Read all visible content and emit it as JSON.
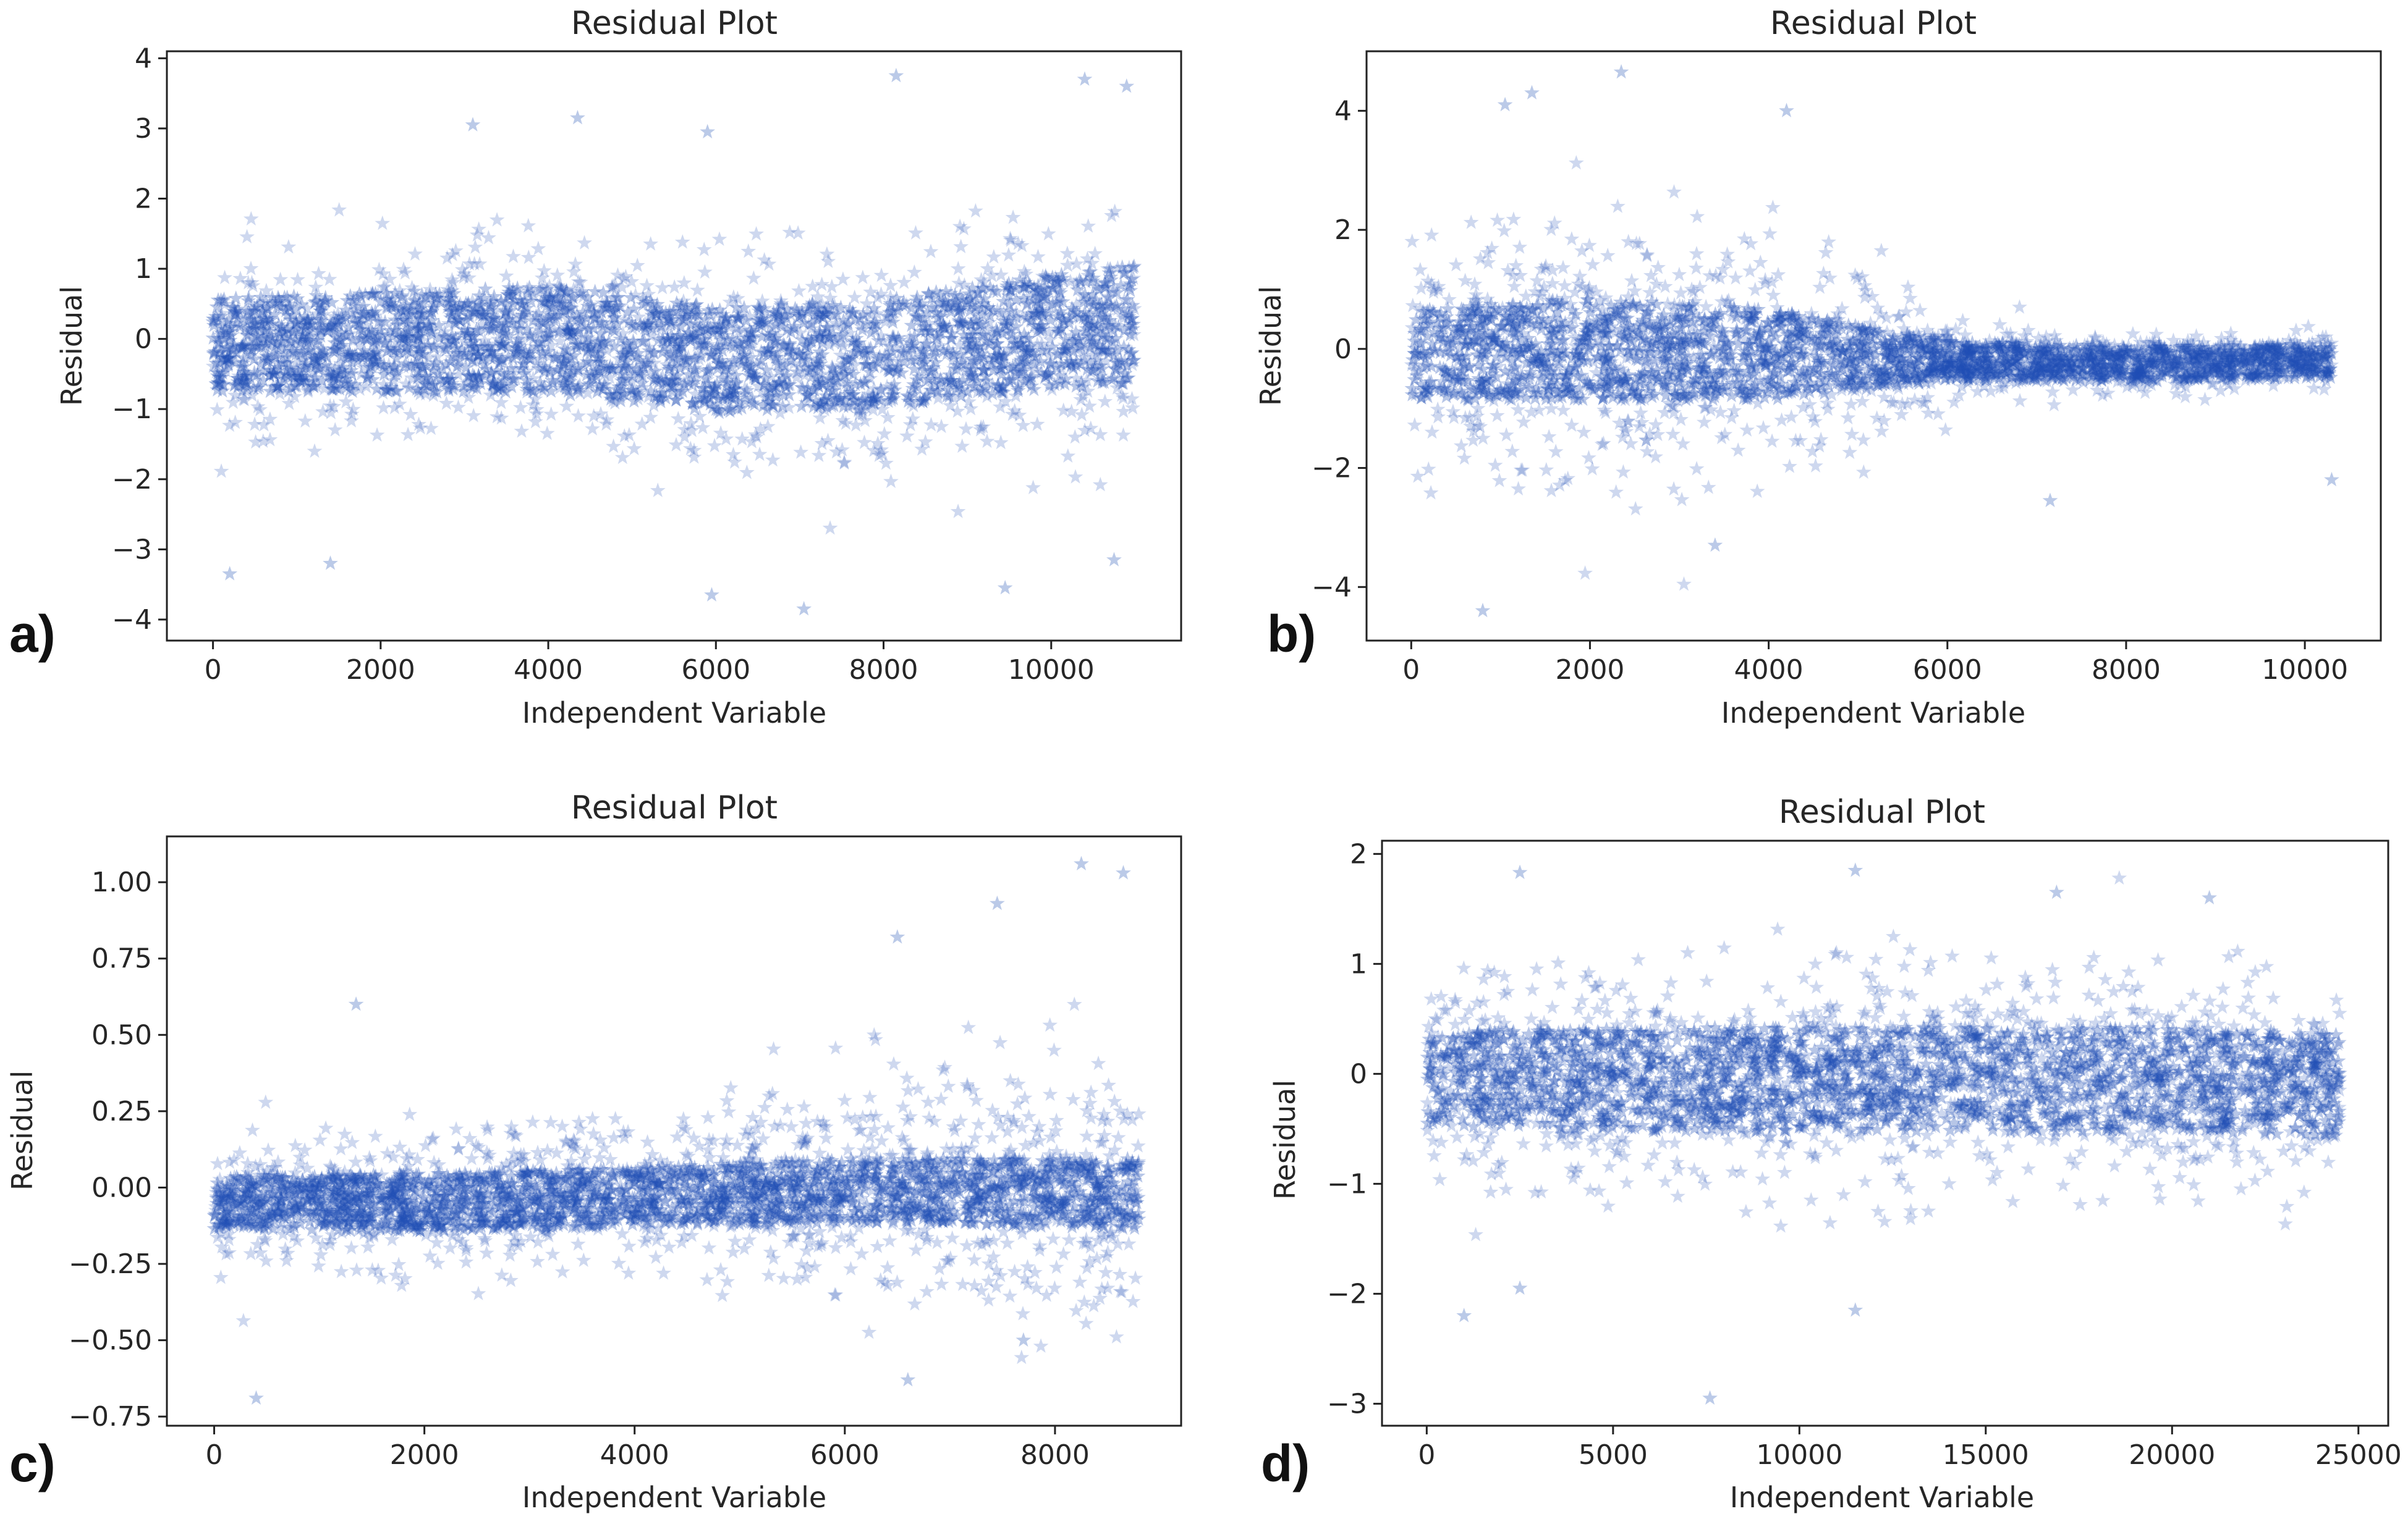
{
  "marker_color": "#1f4fb4",
  "chart_data": [
    {
      "type": "scatter",
      "panel_label": "a)",
      "title": "Residual Plot",
      "xlabel": "Independent Variable",
      "ylabel": "Residual",
      "xlim": [
        -550,
        11550
      ],
      "ylim": [
        -4.3,
        4.1
      ],
      "xticks": [
        0,
        2000,
        4000,
        6000,
        8000,
        10000
      ],
      "xtick_labels": [
        "0",
        "2000",
        "4000",
        "6000",
        "8000",
        "10000"
      ],
      "yticks": [
        -4,
        -3,
        -2,
        -1,
        0,
        1,
        2,
        3,
        4
      ],
      "ytick_labels": [
        "−4",
        "−3",
        "−2",
        "−1",
        "0",
        "1",
        "2",
        "3",
        "4"
      ],
      "marker": "star",
      "n_points": 11000,
      "core_band": [
        {
          "x": 0,
          "center": -0.1,
          "halfwidth": 0.7
        },
        {
          "x": 2000,
          "center": -0.05,
          "halfwidth": 0.75
        },
        {
          "x": 4000,
          "center": 0.0,
          "halfwidth": 0.8
        },
        {
          "x": 6000,
          "center": -0.3,
          "halfwidth": 0.8
        },
        {
          "x": 8000,
          "center": -0.2,
          "halfwidth": 0.8
        },
        {
          "x": 10000,
          "center": 0.1,
          "halfwidth": 0.85
        },
        {
          "x": 11000,
          "center": 0.2,
          "halfwidth": 0.9
        }
      ],
      "spread": [
        {
          "x": 0,
          "sd": 0.8
        },
        {
          "x": 4000,
          "sd": 0.75
        },
        {
          "x": 7000,
          "sd": 0.85
        },
        {
          "x": 11000,
          "sd": 1.0
        }
      ],
      "outliers": [
        {
          "x": 200,
          "y": -3.35
        },
        {
          "x": 1400,
          "y": -3.2
        },
        {
          "x": 5950,
          "y": -3.65
        },
        {
          "x": 7050,
          "y": -3.85
        },
        {
          "x": 9450,
          "y": -3.55
        },
        {
          "x": 10750,
          "y": -3.15
        },
        {
          "x": 8150,
          "y": 3.75
        },
        {
          "x": 10400,
          "y": 3.7
        },
        {
          "x": 10900,
          "y": 3.6
        },
        {
          "x": 4350,
          "y": 3.15
        },
        {
          "x": 3100,
          "y": 3.05
        },
        {
          "x": 5900,
          "y": 2.95
        }
      ]
    },
    {
      "type": "scatter",
      "panel_label": "b)",
      "title": "Residual Plot",
      "xlabel": "Independent Variable",
      "ylabel": "Residual",
      "xlim": [
        -500,
        10850
      ],
      "ylim": [
        -4.9,
        5.0
      ],
      "xticks": [
        0,
        2000,
        4000,
        6000,
        8000,
        10000
      ],
      "xtick_labels": [
        "0",
        "2000",
        "4000",
        "6000",
        "8000",
        "10000"
      ],
      "yticks": [
        -4,
        -2,
        0,
        2,
        4
      ],
      "ytick_labels": [
        "−4",
        "−2",
        "0",
        "2",
        "4"
      ],
      "marker": "star",
      "n_points": 10300,
      "core_band": [
        {
          "x": 0,
          "center": -0.1,
          "halfwidth": 0.8
        },
        {
          "x": 2000,
          "center": 0.0,
          "halfwidth": 0.9
        },
        {
          "x": 4000,
          "center": -0.1,
          "halfwidth": 0.8
        },
        {
          "x": 6000,
          "center": -0.2,
          "halfwidth": 0.35
        },
        {
          "x": 8000,
          "center": -0.25,
          "halfwidth": 0.3
        },
        {
          "x": 10300,
          "center": -0.2,
          "halfwidth": 0.3
        }
      ],
      "spread": [
        {
          "x": 0,
          "sd": 1.3
        },
        {
          "x": 2000,
          "sd": 1.2
        },
        {
          "x": 4300,
          "sd": 1.2
        },
        {
          "x": 5500,
          "sd": 0.7
        },
        {
          "x": 6300,
          "sd": 0.3
        },
        {
          "x": 10300,
          "sd": 0.28
        }
      ],
      "outliers": [
        {
          "x": 800,
          "y": -4.4
        },
        {
          "x": 2350,
          "y": 4.65
        },
        {
          "x": 1350,
          "y": 4.3
        },
        {
          "x": 3400,
          "y": -3.3
        },
        {
          "x": 10300,
          "y": -2.2
        },
        {
          "x": 7150,
          "y": -2.55
        },
        {
          "x": 4200,
          "y": 4.0
        },
        {
          "x": 1050,
          "y": 4.1
        }
      ]
    },
    {
      "type": "scatter",
      "panel_label": "c)",
      "title": "Residual Plot",
      "xlabel": "Independent Variable",
      "ylabel": "Residual",
      "xlim": [
        -450,
        9200
      ],
      "ylim": [
        -0.78,
        1.15
      ],
      "xticks": [
        0,
        2000,
        4000,
        6000,
        8000
      ],
      "xtick_labels": [
        "0",
        "2000",
        "4000",
        "6000",
        "8000"
      ],
      "yticks": [
        -0.75,
        -0.5,
        -0.25,
        0.0,
        0.25,
        0.5,
        0.75,
        1.0
      ],
      "ytick_labels": [
        "−0.75",
        "−0.50",
        "−0.25",
        "0.00",
        "0.25",
        "0.50",
        "0.75",
        "1.00"
      ],
      "marker": "star",
      "n_points": 8800,
      "core_band": [
        {
          "x": 0,
          "center": -0.05,
          "halfwidth": 0.09
        },
        {
          "x": 2000,
          "center": -0.05,
          "halfwidth": 0.1
        },
        {
          "x": 4000,
          "center": -0.03,
          "halfwidth": 0.1
        },
        {
          "x": 6000,
          "center": -0.01,
          "halfwidth": 0.11
        },
        {
          "x": 8800,
          "center": -0.02,
          "halfwidth": 0.12
        }
      ],
      "spread": [
        {
          "x": 0,
          "sd": 0.12
        },
        {
          "x": 4000,
          "sd": 0.14
        },
        {
          "x": 6000,
          "sd": 0.2
        },
        {
          "x": 8800,
          "sd": 0.26
        }
      ],
      "outliers": [
        {
          "x": 400,
          "y": -0.69
        },
        {
          "x": 6600,
          "y": -0.63
        },
        {
          "x": 8250,
          "y": 1.06
        },
        {
          "x": 8650,
          "y": 1.03
        },
        {
          "x": 7450,
          "y": 0.93
        },
        {
          "x": 6500,
          "y": 0.82
        },
        {
          "x": 7700,
          "y": -0.5
        },
        {
          "x": 1350,
          "y": 0.6
        }
      ]
    },
    {
      "type": "scatter",
      "panel_label": "d)",
      "title": "Residual Plot",
      "xlabel": "Independent Variable",
      "ylabel": "Residual",
      "xlim": [
        -1200,
        25800
      ],
      "ylim": [
        -3.2,
        2.12
      ],
      "xticks": [
        0,
        5000,
        10000,
        15000,
        20000,
        25000
      ],
      "xtick_labels": [
        "0",
        "5000",
        "10000",
        "15000",
        "20000",
        "25000"
      ],
      "yticks": [
        -3,
        -2,
        -1,
        0,
        1,
        2
      ],
      "ytick_labels": [
        "−3",
        "−2",
        "−1",
        "0",
        "1",
        "2"
      ],
      "marker": "star",
      "n_points": 24500,
      "core_band": [
        {
          "x": 0,
          "center": -0.05,
          "halfwidth": 0.45
        },
        {
          "x": 5000,
          "center": -0.05,
          "halfwidth": 0.5
        },
        {
          "x": 10000,
          "center": -0.05,
          "halfwidth": 0.5
        },
        {
          "x": 15000,
          "center": -0.05,
          "halfwidth": 0.5
        },
        {
          "x": 20000,
          "center": -0.05,
          "halfwidth": 0.5
        },
        {
          "x": 24500,
          "center": -0.1,
          "halfwidth": 0.5
        }
      ],
      "spread": [
        {
          "x": 0,
          "sd": 0.55
        },
        {
          "x": 12000,
          "sd": 0.6
        },
        {
          "x": 24500,
          "sd": 0.55
        }
      ],
      "outliers": [
        {
          "x": 7600,
          "y": -2.95
        },
        {
          "x": 1000,
          "y": -2.2
        },
        {
          "x": 11500,
          "y": -2.15
        },
        {
          "x": 2500,
          "y": -1.95
        },
        {
          "x": 11500,
          "y": 1.85
        },
        {
          "x": 2500,
          "y": 1.83
        },
        {
          "x": 16900,
          "y": 1.65
        },
        {
          "x": 21000,
          "y": 1.6
        }
      ]
    }
  ]
}
